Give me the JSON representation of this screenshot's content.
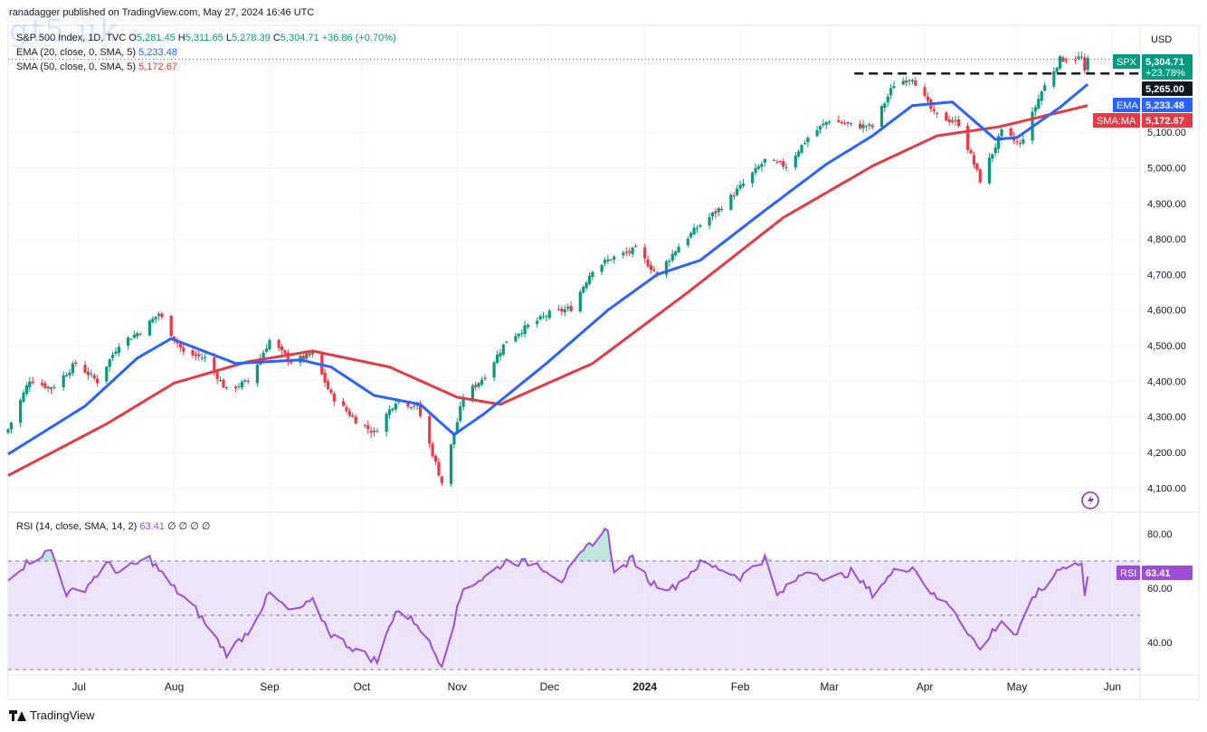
{
  "publisher": "ranadagger published on TradingView.com, May 27, 2024 16:46 UTC",
  "watermark": "gt5.uk",
  "legend": {
    "symbol": "S&P 500 Index, 1D, TVC",
    "ohlc": {
      "o_label": "O",
      "o": "5,281.45",
      "h_label": "H",
      "h": "5,311.65",
      "l_label": "L",
      "l": "5,278.39",
      "c_label": "C",
      "c": "5,304.71",
      "change": "+36.86 (+0.70%)"
    },
    "ema": {
      "label": "EMA (20, close, 0, SMA, 5)",
      "value": "5,233.48"
    },
    "sma": {
      "label": "SMA (50, close, 0, SMA, 5)",
      "value": "5,172.67"
    }
  },
  "currency": "USD",
  "price_tags": {
    "spx": {
      "name": "SPX",
      "value": "5,304.71",
      "sub": "+23.78%"
    },
    "level": {
      "value": "5,265.00"
    },
    "ema": {
      "name": "EMA",
      "value": "5,233.48"
    },
    "sma": {
      "name": "SMA:MA",
      "value": "5,172.67"
    }
  },
  "rsi": {
    "label": "RSI (14, close, SMA, 14, 2)",
    "value": "63.41",
    "extras": "∅ ∅ ∅ ∅",
    "tag": "RSI"
  },
  "brand": "TradingView",
  "colors": {
    "up": "#089981",
    "down": "#f23645",
    "ema": "#2962ff",
    "sma": "#e53945",
    "rsi": "#9c4fd6",
    "rsi_band": "#ede4fa"
  },
  "chart_data": [
    {
      "type": "candlestick",
      "ylim": [
        4060,
        5370
      ],
      "y_ticks": [
        4100,
        4200,
        4300,
        4400,
        4500,
        4600,
        4700,
        4800,
        4900,
        5000,
        5100
      ],
      "y_tick_labels": [
        "4,100.00",
        "4,200.00",
        "4,300.00",
        "4,400.00",
        "4,500.00",
        "4,600.00",
        "4,700.00",
        "4,800.00",
        "4,900.00",
        "5,000.00",
        "5,100.00"
      ],
      "x_tick_labels": [
        "Jul",
        "Aug",
        "Sep",
        "Oct",
        "Nov",
        "Dec",
        "2024",
        "Feb",
        "Mar",
        "Apr",
        "May",
        "Jun"
      ],
      "x_tick_dates": [
        "2023-07-01",
        "2023-08-01",
        "2023-09-01",
        "2023-10-01",
        "2023-11-01",
        "2023-12-01",
        "2024-01-01",
        "2024-02-01",
        "2024-03-01",
        "2024-04-01",
        "2024-05-01",
        "2024-06-01"
      ],
      "x_range": [
        "2023-06-08",
        "2024-06-10"
      ],
      "horizontal_level": {
        "value": 5265,
        "from": "2024-03-15",
        "to": "2024-05-24",
        "style": "dashed"
      },
      "close_anchors": [
        [
          "2023-06-08",
          4265
        ],
        [
          "2023-06-15",
          4405
        ],
        [
          "2023-06-22",
          4380
        ],
        [
          "2023-06-30",
          4450
        ],
        [
          "2023-07-07",
          4400
        ],
        [
          "2023-07-14",
          4505
        ],
        [
          "2023-07-21",
          4540
        ],
        [
          "2023-07-27",
          4590
        ],
        [
          "2023-08-04",
          4480
        ],
        [
          "2023-08-11",
          4465
        ],
        [
          "2023-08-18",
          4375
        ],
        [
          "2023-08-25",
          4400
        ],
        [
          "2023-09-01",
          4515
        ],
        [
          "2023-09-08",
          4455
        ],
        [
          "2023-09-15",
          4475
        ],
        [
          "2023-09-21",
          4360
        ],
        [
          "2023-09-29",
          4290
        ],
        [
          "2023-10-05",
          4255
        ],
        [
          "2023-10-12",
          4345
        ],
        [
          "2023-10-19",
          4330
        ],
        [
          "2023-10-27",
          4115
        ],
        [
          "2023-11-03",
          4355
        ],
        [
          "2023-11-10",
          4415
        ],
        [
          "2023-11-17",
          4515
        ],
        [
          "2023-11-24",
          4555
        ],
        [
          "2023-12-01",
          4590
        ],
        [
          "2023-12-08",
          4605
        ],
        [
          "2023-12-15",
          4715
        ],
        [
          "2023-12-21",
          4745
        ],
        [
          "2023-12-29",
          4770
        ],
        [
          "2024-01-05",
          4700
        ],
        [
          "2024-01-12",
          4780
        ],
        [
          "2024-01-19",
          4840
        ],
        [
          "2024-01-26",
          4890
        ],
        [
          "2024-02-02",
          4955
        ],
        [
          "2024-02-09",
          5020
        ],
        [
          "2024-02-16",
          5005
        ],
        [
          "2024-02-23",
          5085
        ],
        [
          "2024-03-01",
          5135
        ],
        [
          "2024-03-08",
          5120
        ],
        [
          "2024-03-15",
          5115
        ],
        [
          "2024-03-22",
          5235
        ],
        [
          "2024-03-28",
          5255
        ],
        [
          "2024-04-04",
          5150
        ],
        [
          "2024-04-12",
          5125
        ],
        [
          "2024-04-19",
          4965
        ],
        [
          "2024-04-26",
          5100
        ],
        [
          "2024-05-02",
          5065
        ],
        [
          "2024-05-09",
          5215
        ],
        [
          "2024-05-15",
          5305
        ],
        [
          "2024-05-22",
          5310
        ],
        [
          "2024-05-23",
          5265
        ],
        [
          "2024-05-24",
          5305
        ]
      ],
      "ema20_anchors": [
        [
          "2023-06-08",
          4195
        ],
        [
          "2023-07-03",
          4330
        ],
        [
          "2023-07-20",
          4465
        ],
        [
          "2023-07-31",
          4520
        ],
        [
          "2023-08-21",
          4450
        ],
        [
          "2023-09-11",
          4460
        ],
        [
          "2023-09-21",
          4440
        ],
        [
          "2023-10-05",
          4360
        ],
        [
          "2023-10-20",
          4335
        ],
        [
          "2023-10-31",
          4250
        ],
        [
          "2023-11-10",
          4310
        ],
        [
          "2023-11-30",
          4450
        ],
        [
          "2023-12-20",
          4600
        ],
        [
          "2024-01-05",
          4700
        ],
        [
          "2024-01-19",
          4740
        ],
        [
          "2024-02-09",
          4880
        ],
        [
          "2024-02-29",
          5010
        ],
        [
          "2024-03-15",
          5090
        ],
        [
          "2024-03-28",
          5175
        ],
        [
          "2024-04-10",
          5185
        ],
        [
          "2024-04-24",
          5080
        ],
        [
          "2024-05-01",
          5085
        ],
        [
          "2024-05-15",
          5170
        ],
        [
          "2024-05-24",
          5235
        ]
      ],
      "sma50_anchors": [
        [
          "2023-06-08",
          4135
        ],
        [
          "2023-07-10",
          4280
        ],
        [
          "2023-08-01",
          4395
        ],
        [
          "2023-08-25",
          4455
        ],
        [
          "2023-09-15",
          4485
        ],
        [
          "2023-10-10",
          4440
        ],
        [
          "2023-11-01",
          4355
        ],
        [
          "2023-11-15",
          4335
        ],
        [
          "2023-12-15",
          4450
        ],
        [
          "2024-01-15",
          4650
        ],
        [
          "2024-02-15",
          4860
        ],
        [
          "2024-03-15",
          5005
        ],
        [
          "2024-04-05",
          5090
        ],
        [
          "2024-04-25",
          5115
        ],
        [
          "2024-05-24",
          5175
        ]
      ]
    },
    {
      "type": "line",
      "name": "RSI",
      "ylim": [
        30,
        85
      ],
      "y_ticks": [
        40,
        60,
        80
      ],
      "y_tick_labels": [
        "40.00",
        "60.00",
        "80.00"
      ],
      "bands": [
        30,
        50,
        70
      ],
      "anchors": [
        [
          "2023-06-08",
          64
        ],
        [
          "2023-06-15",
          70
        ],
        [
          "2023-06-22",
          74
        ],
        [
          "2023-06-27",
          58
        ],
        [
          "2023-07-03",
          60
        ],
        [
          "2023-07-10",
          69
        ],
        [
          "2023-07-14",
          66
        ],
        [
          "2023-07-24",
          71
        ],
        [
          "2023-07-31",
          61
        ],
        [
          "2023-08-08",
          52
        ],
        [
          "2023-08-18",
          36
        ],
        [
          "2023-08-25",
          44
        ],
        [
          "2023-09-01",
          58
        ],
        [
          "2023-09-08",
          51
        ],
        [
          "2023-09-15",
          55
        ],
        [
          "2023-09-21",
          43
        ],
        [
          "2023-09-28",
          38
        ],
        [
          "2023-10-06",
          33
        ],
        [
          "2023-10-12",
          52
        ],
        [
          "2023-10-19",
          47
        ],
        [
          "2023-10-27",
          32
        ],
        [
          "2023-11-03",
          60
        ],
        [
          "2023-11-10",
          64
        ],
        [
          "2023-11-17",
          70
        ],
        [
          "2023-11-27",
          69
        ],
        [
          "2023-12-05",
          63
        ],
        [
          "2023-12-14",
          76
        ],
        [
          "2023-12-20",
          82
        ],
        [
          "2023-12-22",
          65
        ],
        [
          "2023-12-28",
          71
        ],
        [
          "2024-01-03",
          62
        ],
        [
          "2024-01-10",
          60
        ],
        [
          "2024-01-19",
          69
        ],
        [
          "2024-01-26",
          67
        ],
        [
          "2024-02-01",
          64
        ],
        [
          "2024-02-09",
          71
        ],
        [
          "2024-02-13",
          57
        ],
        [
          "2024-02-23",
          67
        ],
        [
          "2024-03-01",
          63
        ],
        [
          "2024-03-08",
          66
        ],
        [
          "2024-03-15",
          58
        ],
        [
          "2024-03-22",
          66
        ],
        [
          "2024-03-28",
          68
        ],
        [
          "2024-04-04",
          57
        ],
        [
          "2024-04-10",
          53
        ],
        [
          "2024-04-19",
          37
        ],
        [
          "2024-04-23",
          44
        ],
        [
          "2024-04-26",
          48
        ],
        [
          "2024-05-01",
          42
        ],
        [
          "2024-05-06",
          57
        ],
        [
          "2024-05-10",
          60
        ],
        [
          "2024-05-15",
          68
        ],
        [
          "2024-05-22",
          69
        ],
        [
          "2024-05-23",
          57
        ],
        [
          "2024-05-24",
          63.41
        ]
      ]
    }
  ]
}
